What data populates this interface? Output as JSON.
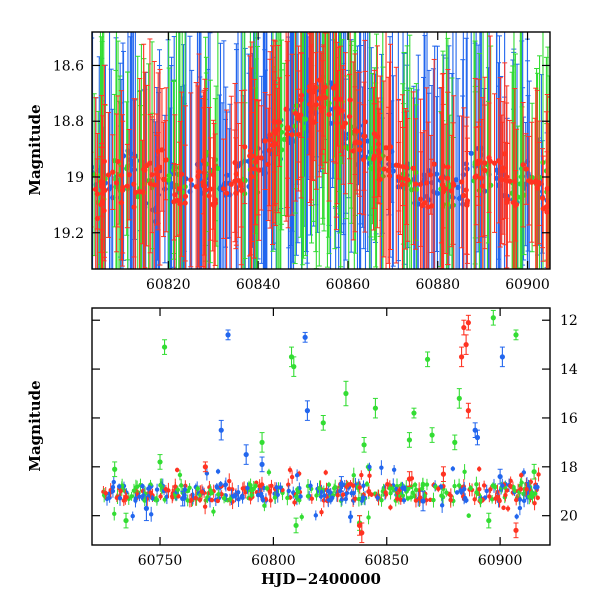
{
  "chart_data": [
    {
      "type": "scatter",
      "title": "",
      "xlabel": "",
      "ylabel": "Magnitude",
      "xlim": [
        60803,
        60905
      ],
      "ylim": [
        18.48,
        19.33
      ],
      "y_inverted": true,
      "grid": false,
      "xticks": [
        60820,
        60840,
        60860,
        60880,
        60900
      ],
      "yticks": [
        18.6,
        18.8,
        19,
        19.2
      ],
      "x_tick_labels": [
        "60820",
        "60840",
        "60860",
        "60880",
        "60900"
      ],
      "y_tick_labels": [
        "18.6",
        "18.8",
        "19",
        "19.2"
      ],
      "error_bars": true,
      "series": [
        {
          "color": "#2266ee",
          "points": [
            [
              60804,
              19.0,
              0.3
            ],
            [
              60808,
              19.05,
              0.35
            ],
            [
              60812,
              18.95,
              0.4
            ],
            [
              60816,
              19.1,
              0.3
            ],
            [
              60820,
              19.0,
              0.3
            ],
            [
              60824,
              19.05,
              0.35
            ],
            [
              60828,
              19.0,
              0.4
            ],
            [
              60832,
              19.05,
              0.3
            ],
            [
              60836,
              19.0,
              0.35
            ],
            [
              60840,
              18.95,
              0.4
            ],
            [
              60843,
              18.9,
              0.35
            ],
            [
              60846,
              18.85,
              0.4
            ],
            [
              60849,
              18.8,
              0.35
            ],
            [
              60852,
              18.75,
              0.3
            ],
            [
              60855,
              18.72,
              0.3
            ],
            [
              60858,
              18.8,
              0.35
            ],
            [
              60861,
              18.85,
              0.3
            ],
            [
              60864,
              18.9,
              0.35
            ],
            [
              60868,
              18.95,
              0.3
            ],
            [
              60872,
              19.0,
              0.35
            ],
            [
              60876,
              19.05,
              0.4
            ],
            [
              60880,
              19.0,
              0.3
            ],
            [
              60884,
              19.05,
              0.35
            ],
            [
              60888,
              18.95,
              0.4
            ],
            [
              60892,
              19.0,
              0.35
            ],
            [
              60896,
              19.05,
              0.3
            ],
            [
              60900,
              19.0,
              0.35
            ],
            [
              60904,
              19.05,
              0.3
            ]
          ]
        },
        {
          "color": "#33dd33",
          "points": [
            [
              60805,
              19.05,
              0.4
            ],
            [
              60810,
              19.0,
              0.35
            ],
            [
              60815,
              19.05,
              0.3
            ],
            [
              60822,
              19.0,
              0.4
            ],
            [
              60830,
              18.95,
              0.35
            ],
            [
              60838,
              19.0,
              0.4
            ],
            [
              60844,
              18.85,
              0.4
            ],
            [
              60850,
              18.8,
              0.35
            ],
            [
              60854,
              18.7,
              0.4
            ],
            [
              60857,
              18.75,
              0.35
            ],
            [
              60860,
              18.85,
              0.4
            ],
            [
              60866,
              18.95,
              0.35
            ],
            [
              60874,
              19.0,
              0.3
            ],
            [
              60882,
              19.05,
              0.35
            ],
            [
              60890,
              19.0,
              0.4
            ],
            [
              60898,
              19.05,
              0.35
            ],
            [
              60903,
              19.0,
              0.3
            ]
          ]
        },
        {
          "color": "#ff3322",
          "points": [
            [
              60804,
              19.1,
              0.2
            ],
            [
              60807,
              19.0,
              0.2
            ],
            [
              60811,
              19.05,
              0.2
            ],
            [
              60815,
              19.0,
              0.25
            ],
            [
              60819,
              18.95,
              0.2
            ],
            [
              60823,
              19.05,
              0.2
            ],
            [
              60827,
              19.0,
              0.25
            ],
            [
              60831,
              19.05,
              0.2
            ],
            [
              60835,
              19.0,
              0.2
            ],
            [
              60839,
              18.95,
              0.25
            ],
            [
              60842,
              18.9,
              0.2
            ],
            [
              60845,
              18.85,
              0.2
            ],
            [
              60848,
              18.8,
              0.25
            ],
            [
              60851,
              18.75,
              0.2
            ],
            [
              60853,
              18.7,
              0.2
            ],
            [
              60856,
              18.72,
              0.2
            ],
            [
              60859,
              18.78,
              0.25
            ],
            [
              60862,
              18.85,
              0.2
            ],
            [
              60865,
              18.9,
              0.2
            ],
            [
              60869,
              18.95,
              0.25
            ],
            [
              60873,
              19.0,
              0.2
            ],
            [
              60877,
              19.05,
              0.2
            ],
            [
              60881,
              19.0,
              0.25
            ],
            [
              60885,
              19.05,
              0.2
            ],
            [
              60889,
              19.0,
              0.2
            ],
            [
              60893,
              18.95,
              0.25
            ],
            [
              60897,
              19.05,
              0.2
            ],
            [
              60901,
              19.0,
              0.2
            ],
            [
              60904,
              19.1,
              0.25
            ]
          ]
        }
      ]
    },
    {
      "type": "scatter",
      "title": "",
      "xlabel": "HJD−2400000",
      "ylabel": "Magnitude",
      "xlim": [
        60720,
        60922
      ],
      "ylim": [
        11.5,
        21.2
      ],
      "y_inverted": true,
      "grid": false,
      "xticks": [
        60750,
        60800,
        60850,
        60900
      ],
      "yticks": [
        12,
        14,
        16,
        18,
        20
      ],
      "x_tick_labels": [
        "60750",
        "60800",
        "60850",
        "60900"
      ],
      "y_tick_labels": [
        "12",
        "14",
        "16",
        "18",
        "20"
      ],
      "error_bars": true,
      "series": [
        {
          "color": "#2266ee",
          "points": [
            [
              60780,
              12.6,
              0.2
            ],
            [
              60814,
              12.7,
              0.2
            ],
            [
              60901,
              13.5,
              0.4
            ],
            [
              60777,
              16.5,
              0.4
            ],
            [
              60815,
              15.7,
              0.4
            ],
            [
              60889,
              16.5,
              0.3
            ],
            [
              60890,
              16.8,
              0.3
            ],
            [
              60788,
              17.5,
              0.4
            ],
            [
              60744,
              19.7,
              0.5
            ],
            [
              60795,
              17.9,
              0.3
            ],
            [
              60830,
              18.7,
              0.3
            ],
            [
              60866,
              19.4,
              0.4
            ],
            [
              60900,
              18.4,
              0.3
            ],
            [
              60760,
              19.3,
              0.3
            ]
          ]
        },
        {
          "color": "#33dd33",
          "points": [
            [
              60752,
              13.1,
              0.3
            ],
            [
              60808,
              13.5,
              0.4
            ],
            [
              60809,
              13.9,
              0.4
            ],
            [
              60897,
              11.9,
              0.3
            ],
            [
              60907,
              12.6,
              0.2
            ],
            [
              60832,
              15.0,
              0.5
            ],
            [
              60845,
              15.6,
              0.4
            ],
            [
              60868,
              13.6,
              0.3
            ],
            [
              60882,
              15.2,
              0.4
            ],
            [
              60862,
              15.8,
              0.2
            ],
            [
              60822,
              16.2,
              0.3
            ],
            [
              60840,
              17.1,
              0.3
            ],
            [
              60860,
              16.9,
              0.3
            ],
            [
              60880,
              17.0,
              0.3
            ],
            [
              60730,
              18.1,
              0.3
            ],
            [
              60750,
              17.8,
              0.3
            ],
            [
              60795,
              17.0,
              0.4
            ],
            [
              60870,
              16.7,
              0.3
            ],
            [
              60915,
              18.2,
              0.3
            ],
            [
              60735,
              20.2,
              0.3
            ],
            [
              60810,
              20.4,
              0.3
            ],
            [
              60838,
              20.3,
              0.3
            ],
            [
              60895,
              20.2,
              0.3
            ]
          ]
        },
        {
          "color": "#ff3322",
          "points": [
            [
              60884,
              12.3,
              0.3
            ],
            [
              60885,
              13.0,
              0.4
            ],
            [
              60883,
              13.5,
              0.4
            ],
            [
              60886,
              12.1,
              0.3
            ],
            [
              60886,
              15.7,
              0.3
            ],
            [
              60838,
              20.4,
              0.4
            ],
            [
              60839,
              20.7,
              0.4
            ],
            [
              60907,
              20.6,
              0.3
            ],
            [
              60770,
              18.0,
              0.2
            ],
            [
              60860,
              18.5,
              0.3
            ],
            [
              60875,
              18.3,
              0.3
            ]
          ]
        }
      ],
      "baseline_band": {
        "y_center": 19.05,
        "y_spread": 0.35,
        "x_range": [
          60725,
          60917
        ]
      }
    }
  ]
}
